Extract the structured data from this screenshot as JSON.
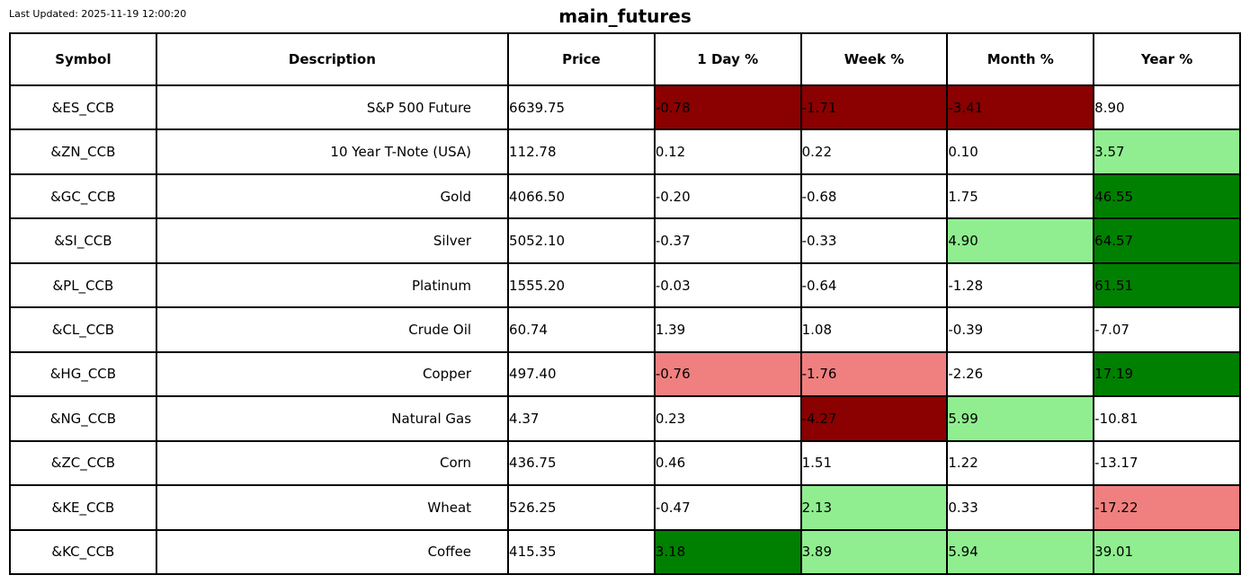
{
  "meta": {
    "last_updated": "Last Updated: 2025-11-19 12:00:20",
    "title": "main_futures"
  },
  "colors": {
    "white": "#FFFFFF",
    "dark_red": "#8B0000",
    "light_red": "#F08080",
    "light_green": "#90EE90",
    "dark_green": "#008000"
  },
  "chart_data": {
    "type": "table",
    "title": "main_futures",
    "columns": [
      "Symbol",
      "Description",
      "Price",
      "1 Day %",
      "Week %",
      "Month %",
      "Year %"
    ],
    "rows": [
      {
        "cells": [
          "&ES_CCB",
          "S&P 500 Future",
          "6639.75",
          "-0.78",
          "-1.71",
          "-3.41",
          "8.90"
        ],
        "cell_colors": [
          "white",
          "white",
          "white",
          "dark_red",
          "dark_red",
          "dark_red",
          "white"
        ]
      },
      {
        "cells": [
          "&ZN_CCB",
          "10 Year T-Note (USA)",
          "112.78",
          "0.12",
          "0.22",
          "0.10",
          "3.57"
        ],
        "cell_colors": [
          "white",
          "white",
          "white",
          "white",
          "white",
          "white",
          "light_green"
        ]
      },
      {
        "cells": [
          "&GC_CCB",
          "Gold",
          "4066.50",
          "-0.20",
          "-0.68",
          "1.75",
          "46.55"
        ],
        "cell_colors": [
          "white",
          "white",
          "white",
          "white",
          "white",
          "white",
          "dark_green"
        ]
      },
      {
        "cells": [
          "&SI_CCB",
          "Silver",
          "5052.10",
          "-0.37",
          "-0.33",
          "4.90",
          "64.57"
        ],
        "cell_colors": [
          "white",
          "white",
          "white",
          "white",
          "white",
          "light_green",
          "dark_green"
        ]
      },
      {
        "cells": [
          "&PL_CCB",
          "Platinum",
          "1555.20",
          "-0.03",
          "-0.64",
          "-1.28",
          "61.51"
        ],
        "cell_colors": [
          "white",
          "white",
          "white",
          "white",
          "white",
          "white",
          "dark_green"
        ]
      },
      {
        "cells": [
          "&CL_CCB",
          "Crude Oil",
          "60.74",
          "1.39",
          "1.08",
          "-0.39",
          "-7.07"
        ],
        "cell_colors": [
          "white",
          "white",
          "white",
          "white",
          "white",
          "white",
          "white"
        ]
      },
      {
        "cells": [
          "&HG_CCB",
          "Copper",
          "497.40",
          "-0.76",
          "-1.76",
          "-2.26",
          "17.19"
        ],
        "cell_colors": [
          "white",
          "white",
          "white",
          "light_red",
          "light_red",
          "white",
          "dark_green"
        ]
      },
      {
        "cells": [
          "&NG_CCB",
          "Natural Gas",
          "4.37",
          "0.23",
          "-4.27",
          "5.99",
          "-10.81"
        ],
        "cell_colors": [
          "white",
          "white",
          "white",
          "white",
          "dark_red",
          "light_green",
          "white"
        ]
      },
      {
        "cells": [
          "&ZC_CCB",
          "Corn",
          "436.75",
          "0.46",
          "1.51",
          "1.22",
          "-13.17"
        ],
        "cell_colors": [
          "white",
          "white",
          "white",
          "white",
          "white",
          "white",
          "white"
        ]
      },
      {
        "cells": [
          "&KE_CCB",
          "Wheat",
          "526.25",
          "-0.47",
          "2.13",
          "0.33",
          "-17.22"
        ],
        "cell_colors": [
          "white",
          "white",
          "white",
          "white",
          "light_green",
          "white",
          "light_red"
        ]
      },
      {
        "cells": [
          "&KC_CCB",
          "Coffee",
          "415.35",
          "3.18",
          "3.89",
          "5.94",
          "39.01"
        ],
        "cell_colors": [
          "white",
          "white",
          "white",
          "dark_green",
          "light_green",
          "light_green",
          "light_green"
        ]
      }
    ]
  }
}
